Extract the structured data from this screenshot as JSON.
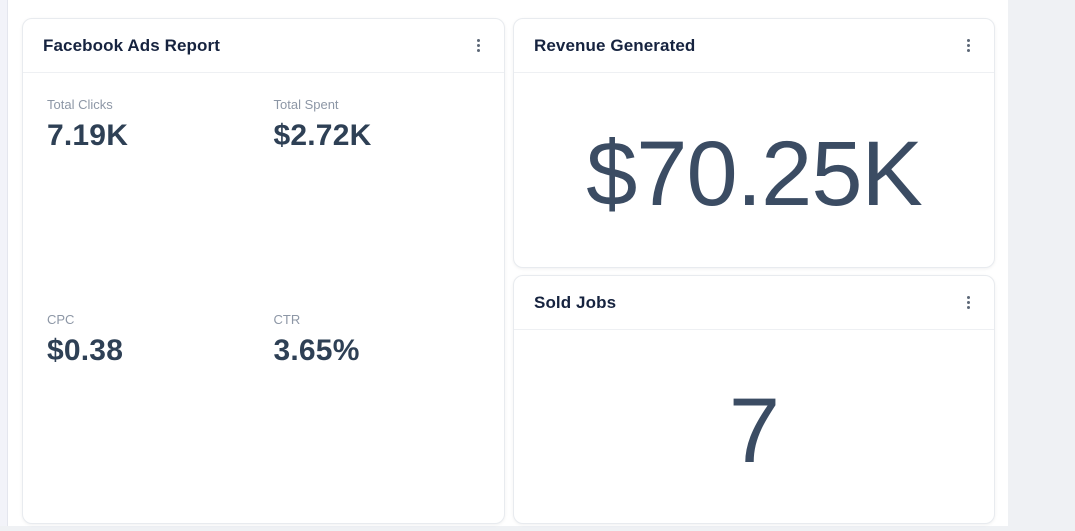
{
  "page": {
    "background_color": "#eff1f4",
    "panel_background_color": "#ffffff",
    "title_color": "#16233f",
    "label_color": "#8d97a6",
    "value_color": "#2e4055",
    "big_value_color": "#3b4c63"
  },
  "cards": [
    {
      "id": "facebook-ads-report",
      "title": "Facebook Ads Report",
      "menu_icon": "kebab-menu-icon",
      "metrics": [
        {
          "label": "Total Clicks",
          "value": "7.19K"
        },
        {
          "label": "Total Spent",
          "value": "$2.72K"
        },
        {
          "label": "CPC",
          "value": "$0.38"
        },
        {
          "label": "CTR",
          "value": "3.65%"
        }
      ]
    },
    {
      "id": "revenue-generated",
      "title": "Revenue Generated",
      "menu_icon": "kebab-menu-icon",
      "value": "$70.25K"
    },
    {
      "id": "sold-jobs",
      "title": "Sold Jobs",
      "menu_icon": "kebab-menu-icon",
      "value": "7"
    }
  ]
}
